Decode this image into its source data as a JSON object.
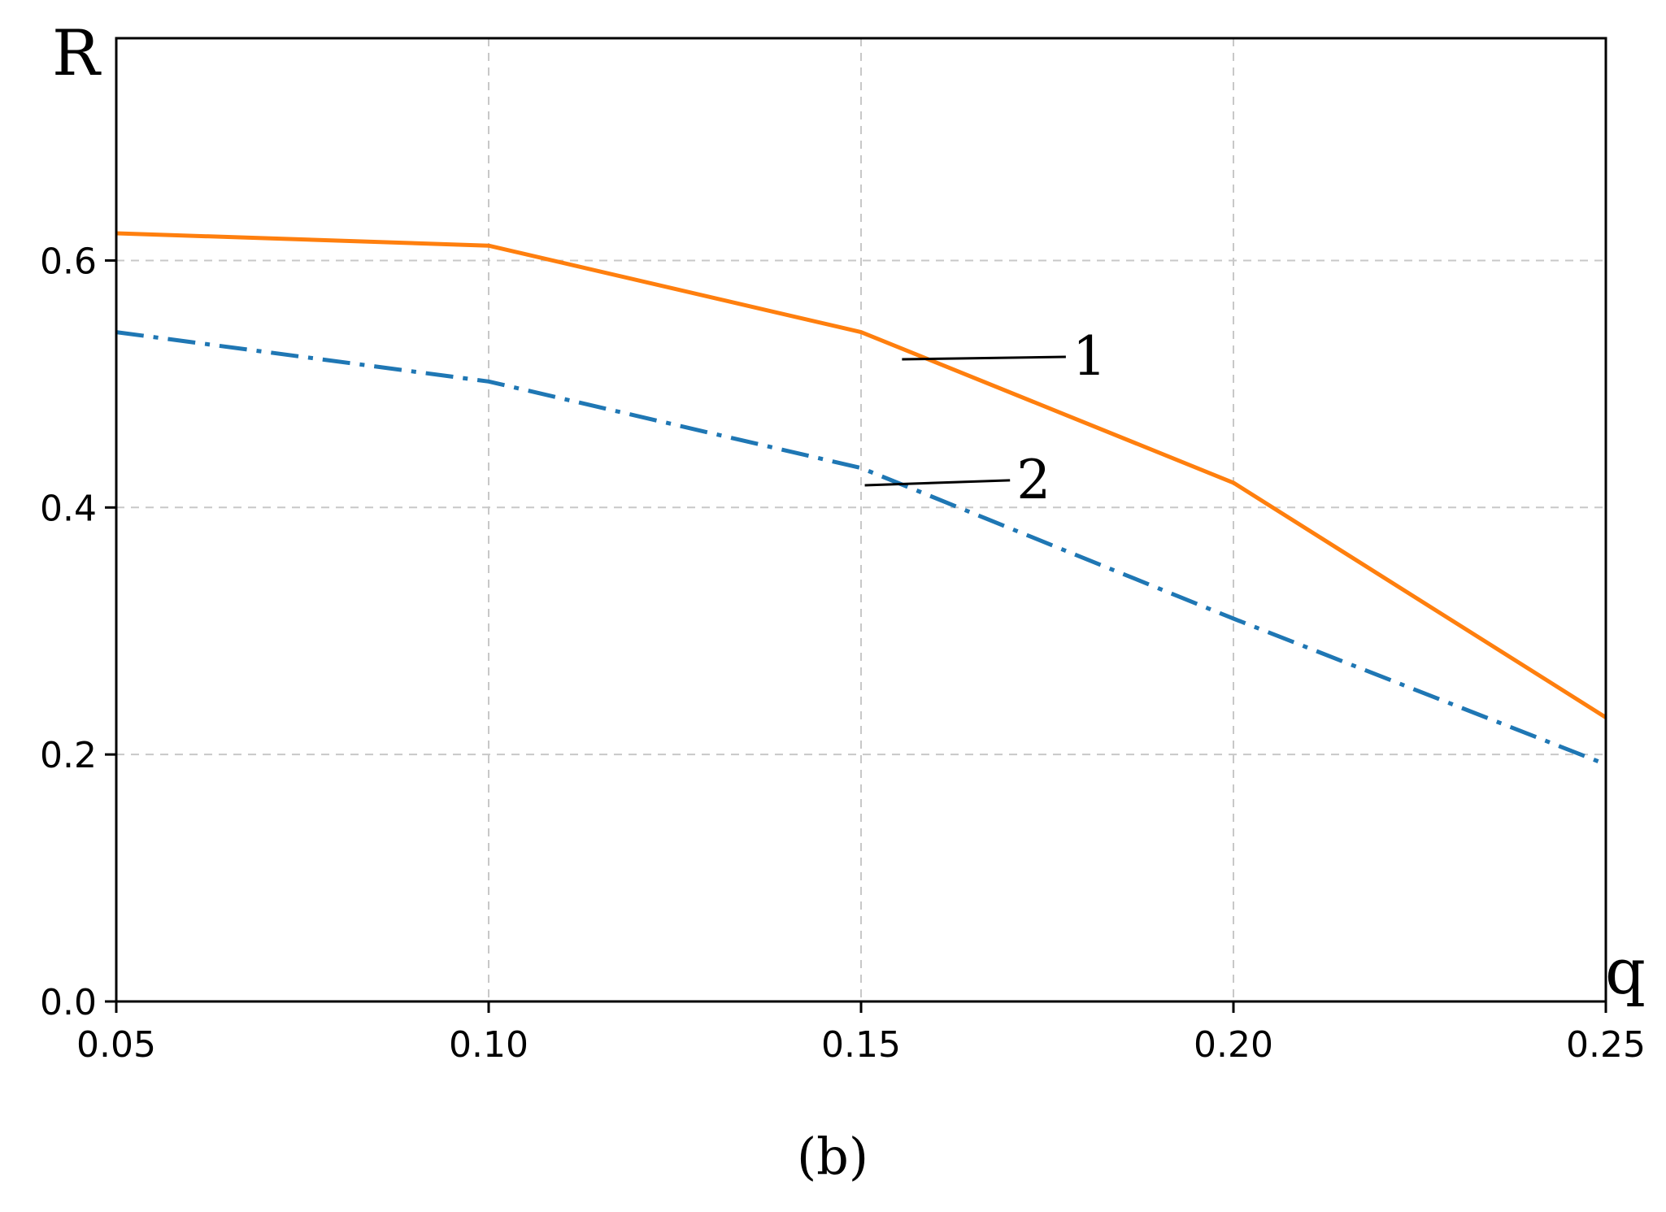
{
  "chart_data": {
    "type": "line",
    "xlabel": "q",
    "ylabel": "R",
    "caption": "(b)",
    "xlim": [
      0.05,
      0.25
    ],
    "ylim": [
      0.0,
      0.78
    ],
    "x_ticks": [
      "0.05",
      "0.10",
      "0.15",
      "0.20",
      "0.25"
    ],
    "x_tick_values": [
      0.05,
      0.1,
      0.15,
      0.2,
      0.25
    ],
    "y_ticks": [
      "0.0",
      "0.2",
      "0.4",
      "0.6"
    ],
    "y_tick_values": [
      0.0,
      0.2,
      0.4,
      0.6
    ],
    "grid": true,
    "x": [
      0.05,
      0.1,
      0.15,
      0.2,
      0.25
    ],
    "series": [
      {
        "name": "1",
        "values": [
          0.622,
          0.612,
          0.542,
          0.42,
          0.23
        ],
        "color": "#ff7f0e",
        "style": "solid",
        "label_anchor": [
          0.1555,
          0.52
        ],
        "label_point": [
          0.1775,
          0.522
        ]
      },
      {
        "name": "2",
        "values": [
          0.542,
          0.502,
          0.432,
          0.31,
          0.192
        ],
        "color": "#1f77b4",
        "style": "dash-dot",
        "label_anchor": [
          0.1505,
          0.418
        ],
        "label_point": [
          0.17,
          0.422
        ]
      }
    ]
  }
}
